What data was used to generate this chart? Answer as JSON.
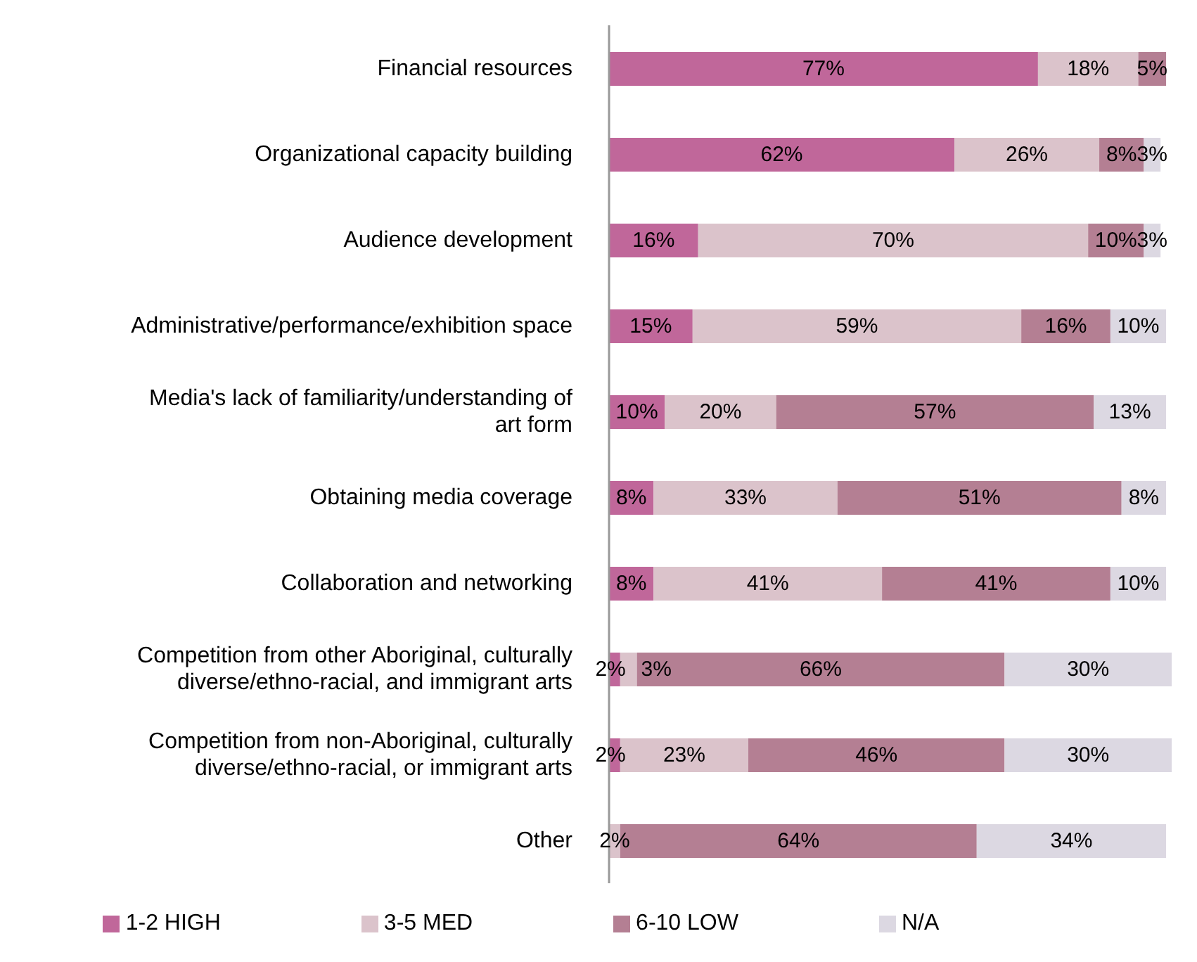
{
  "chart_data": {
    "type": "bar",
    "orientation": "horizontal",
    "stacked": true,
    "legend": "bottom",
    "grid": false,
    "categories": [
      "Financial resources",
      "Organizational capacity building",
      "Audience development",
      "Administrative/performance/exhibition space",
      "Media's lack of familiarity/understanding of art form",
      "Obtaining media coverage",
      "Collaboration and networking",
      "Competition from other Aboriginal, culturally diverse/ethno-racial, and immigrant arts",
      "Competition from non-Aboriginal, culturally diverse/ethno-racial, or immigrant arts",
      "Other"
    ],
    "series": [
      {
        "name": "1-2 HIGH",
        "color": "#c0679a",
        "values": [
          77,
          62,
          16,
          15,
          10,
          8,
          8,
          2,
          2,
          0
        ],
        "value_labels": [
          "77%",
          "62%",
          "16%",
          "15%",
          "10%",
          "8%",
          "8%",
          "2%",
          "2%",
          null
        ]
      },
      {
        "name": "3-5 MED",
        "color": "#dbc3cb",
        "values": [
          18,
          26,
          70,
          59,
          20,
          33,
          41,
          3,
          23,
          2
        ],
        "value_labels": [
          "18%",
          "26%",
          "70%",
          "59%",
          "20%",
          "33%",
          "41%",
          "3%",
          "23%",
          "2%"
        ]
      },
      {
        "name": "6-10 LOW",
        "color": "#b47f93",
        "values": [
          5,
          8,
          10,
          16,
          57,
          51,
          41,
          66,
          46,
          64
        ],
        "value_labels": [
          "5%",
          "8%",
          "10%",
          "16%",
          "57%",
          "51%",
          "41%",
          "66%",
          "46%",
          "64%"
        ]
      },
      {
        "name": "N/A",
        "color": "#dcd8e2",
        "values": [
          0,
          3,
          3,
          10,
          13,
          8,
          10,
          30,
          30,
          34
        ],
        "value_labels": [
          null,
          "3%",
          "3%",
          "10%",
          "13%",
          "8%",
          "10%",
          "30%",
          "30%",
          "34%"
        ]
      }
    ]
  }
}
